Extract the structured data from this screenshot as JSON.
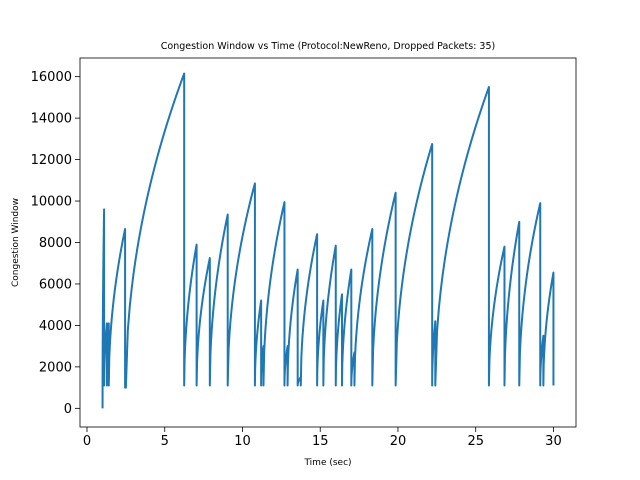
{
  "chart_data": {
    "type": "line",
    "title": "Congestion Window vs Time (Protocol:NewReno, Dropped Packets: 35)",
    "xlabel": "Time (sec)",
    "ylabel": "Congestion Window",
    "xlim": [
      -0.45,
      31.45
    ],
    "ylim": [
      -900,
      16900
    ],
    "xticks": [
      0,
      5,
      10,
      15,
      20,
      25,
      30
    ],
    "yticks": [
      0,
      2000,
      4000,
      6000,
      8000,
      10000,
      12000,
      14000,
      16000
    ],
    "grid": false,
    "legend": "none",
    "line_color": "#1f77b4",
    "series": [
      {
        "comment_shape": "TCP sawtooth: each segment grows concavely from start value to peak, then drops vertically",
        "segments": [
          {
            "x": [
              1.0,
              1.1
            ],
            "y": [
              0,
              9600
            ]
          },
          {
            "x": [
              1.1,
              1.28
            ],
            "y": [
              1100,
              4100
            ]
          },
          {
            "x": [
              1.28,
              1.4
            ],
            "y": [
              1100,
              4100
            ]
          },
          {
            "x": [
              1.4,
              2.45
            ],
            "y": [
              1100,
              8650
            ]
          },
          {
            "x": [
              2.45,
              2.5
            ],
            "y": [
              1000,
              1200
            ]
          },
          {
            "x": [
              2.5,
              6.25
            ],
            "y": [
              1000,
              16150
            ]
          },
          {
            "x": [
              6.25,
              7.05
            ],
            "y": [
              1100,
              7900
            ]
          },
          {
            "x": [
              7.05,
              7.9
            ],
            "y": [
              1100,
              7250
            ]
          },
          {
            "x": [
              7.9,
              9.05
            ],
            "y": [
              1100,
              9350
            ]
          },
          {
            "x": [
              9.05,
              10.8
            ],
            "y": [
              1100,
              10850
            ]
          },
          {
            "x": [
              10.8,
              11.2
            ],
            "y": [
              1100,
              5200
            ]
          },
          {
            "x": [
              11.2,
              11.35
            ],
            "y": [
              1100,
              3000
            ]
          },
          {
            "x": [
              11.35,
              12.7
            ],
            "y": [
              1100,
              9950
            ]
          },
          {
            "x": [
              12.7,
              12.9
            ],
            "y": [
              1100,
              3000
            ]
          },
          {
            "x": [
              12.9,
              13.55
            ],
            "y": [
              1100,
              6700
            ]
          },
          {
            "x": [
              13.55,
              13.75
            ],
            "y": [
              1100,
              1500
            ]
          },
          {
            "x": [
              13.75,
              14.8
            ],
            "y": [
              1100,
              8400
            ]
          },
          {
            "x": [
              14.8,
              15.2
            ],
            "y": [
              1100,
              5200
            ]
          },
          {
            "x": [
              15.2,
              16.0
            ],
            "y": [
              1100,
              7850
            ]
          },
          {
            "x": [
              16.0,
              16.4
            ],
            "y": [
              1100,
              5500
            ]
          },
          {
            "x": [
              16.4,
              17.0
            ],
            "y": [
              1100,
              6700
            ]
          },
          {
            "x": [
              17.0,
              17.2
            ],
            "y": [
              1100,
              2700
            ]
          },
          {
            "x": [
              17.2,
              18.35
            ],
            "y": [
              1100,
              8650
            ]
          },
          {
            "x": [
              18.35,
              19.85
            ],
            "y": [
              1100,
              10400
            ]
          },
          {
            "x": [
              19.85,
              22.2
            ],
            "y": [
              1100,
              12750
            ]
          },
          {
            "x": [
              22.2,
              22.4
            ],
            "y": [
              1100,
              4200
            ]
          },
          {
            "x": [
              22.4,
              25.85
            ],
            "y": [
              1100,
              15500
            ]
          },
          {
            "x": [
              25.85,
              26.85
            ],
            "y": [
              1100,
              7800
            ]
          },
          {
            "x": [
              26.85,
              27.8
            ],
            "y": [
              1100,
              9000
            ]
          },
          {
            "x": [
              27.8,
              29.15
            ],
            "y": [
              1100,
              9900
            ]
          },
          {
            "x": [
              29.15,
              29.35
            ],
            "y": [
              1100,
              3500
            ]
          },
          {
            "x": [
              29.35,
              30.0
            ],
            "y": [
              1100,
              6550
            ]
          }
        ],
        "end": {
          "x": 30.0,
          "y": 1100
        }
      }
    ]
  }
}
